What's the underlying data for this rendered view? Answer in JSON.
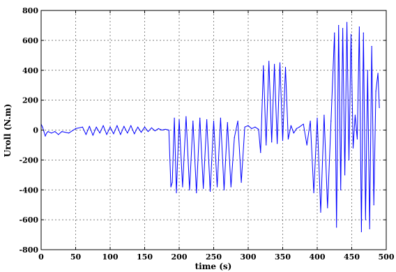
{
  "chart_data": {
    "type": "line",
    "title": "",
    "xlabel": "time (s)",
    "ylabel": "Uroll (N.m)",
    "xlim": [
      0,
      500
    ],
    "ylim": [
      -800,
      800
    ],
    "xticks": [
      0,
      50,
      100,
      150,
      200,
      250,
      300,
      350,
      400,
      450,
      500
    ],
    "yticks": [
      -800,
      -600,
      -400,
      -200,
      0,
      200,
      400,
      600,
      800
    ],
    "grid": true,
    "line_color": "#0000ff",
    "series": [
      {
        "x": [
          0,
          2,
          4,
          6,
          8,
          10,
          15,
          20,
          25,
          30,
          40,
          50,
          60,
          65,
          70,
          75,
          80,
          85,
          90,
          95,
          100,
          105,
          110,
          115,
          120,
          125,
          130,
          135,
          140,
          145,
          150,
          155,
          160,
          165,
          170,
          175,
          180,
          185,
          188,
          190,
          193,
          196,
          200,
          205,
          210,
          215,
          220,
          225,
          230,
          235,
          240,
          245,
          250,
          255,
          260,
          265,
          270,
          275,
          280,
          285,
          290,
          295,
          300,
          305,
          310,
          315,
          318,
          322,
          326,
          330,
          334,
          338,
          342,
          346,
          350,
          354,
          358,
          362,
          366,
          370,
          374,
          380,
          385,
          390,
          395,
          400,
          405,
          410,
          415,
          420,
          425,
          428,
          431,
          434,
          437,
          440,
          443,
          446,
          449,
          452,
          455,
          458,
          461,
          464,
          467,
          470,
          473,
          476,
          479,
          482,
          485,
          488,
          490
        ],
        "values": [
          40,
          20,
          -10,
          -40,
          -20,
          -10,
          -20,
          -10,
          -30,
          -10,
          -20,
          10,
          20,
          -30,
          25,
          -35,
          20,
          -20,
          30,
          -30,
          20,
          -25,
          30,
          -30,
          25,
          -20,
          30,
          -25,
          20,
          -15,
          20,
          -10,
          15,
          -5,
          10,
          0,
          5,
          0,
          -380,
          -350,
          80,
          -420,
          70,
          -380,
          90,
          -400,
          60,
          -420,
          80,
          -390,
          70,
          -410,
          60,
          -380,
          80,
          -400,
          50,
          -380,
          -50,
          60,
          -350,
          20,
          30,
          10,
          20,
          5,
          -150,
          430,
          -100,
          460,
          -80,
          440,
          -90,
          450,
          -70,
          420,
          -60,
          30,
          -20,
          10,
          20,
          40,
          -100,
          60,
          -420,
          80,
          -550,
          100,
          -520,
          60,
          650,
          -650,
          700,
          -400,
          680,
          -300,
          720,
          -200,
          640,
          -120,
          100,
          -60,
          690,
          -680,
          650,
          -600,
          400,
          -660,
          560,
          -500,
          260,
          380,
          150
        ]
      }
    ]
  }
}
